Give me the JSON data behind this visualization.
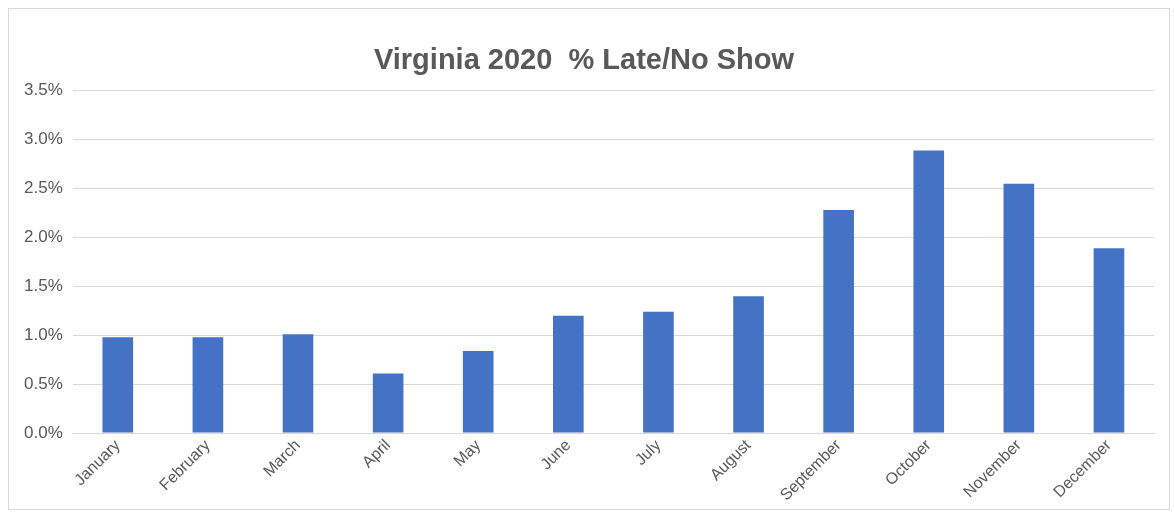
{
  "chart_data": {
    "type": "bar",
    "title": "Virginia 2020  % Late/No Show",
    "categories": [
      "January",
      "February",
      "March",
      "April",
      "May",
      "June",
      "July",
      "August",
      "September",
      "October",
      "November",
      "December"
    ],
    "values": [
      0.98,
      0.98,
      1.01,
      0.61,
      0.84,
      1.2,
      1.24,
      1.4,
      2.28,
      2.89,
      2.55,
      1.89
    ],
    "color": "#4472c4",
    "ylim": [
      0,
      3.5
    ],
    "yticks": [
      {
        "value": 0,
        "label": "0.0%"
      },
      {
        "value": 0.5,
        "label": "0.5%"
      },
      {
        "value": 1,
        "label": "1.0%"
      },
      {
        "value": 1.5,
        "label": "1.5%"
      },
      {
        "value": 2,
        "label": "2.0%"
      },
      {
        "value": 2.5,
        "label": "2.5%"
      },
      {
        "value": 3,
        "label": "3.0%"
      },
      {
        "value": 3.5,
        "label": "3.5%"
      }
    ],
    "grid": "y",
    "legend": false
  }
}
